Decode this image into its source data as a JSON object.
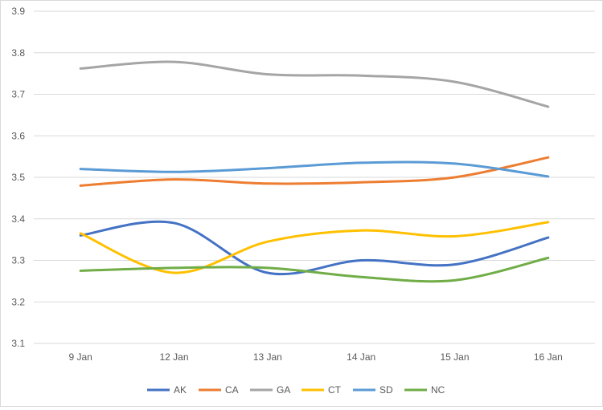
{
  "chart_data": {
    "type": "line",
    "smooth": true,
    "title": "",
    "xlabel": "",
    "ylabel": "",
    "categories": [
      "9 Jan",
      "12 Jan",
      "13 Jan",
      "14 Jan",
      "15 Jan",
      "16 Jan"
    ],
    "ylim": [
      3.1,
      3.9
    ],
    "yticks": [
      "3.1",
      "3.2",
      "3.3",
      "3.4",
      "3.5",
      "3.6",
      "3.7",
      "3.8",
      "3.9"
    ],
    "grid": true,
    "legend_position": "bottom",
    "series": [
      {
        "name": "AK",
        "color": "#4472c4",
        "values": [
          3.36,
          3.39,
          3.27,
          3.3,
          3.29,
          3.355
        ]
      },
      {
        "name": "CA",
        "color": "#ed7d31",
        "values": [
          3.48,
          3.495,
          3.485,
          3.488,
          3.5,
          3.548
        ]
      },
      {
        "name": "GA",
        "color": "#a5a5a5",
        "values": [
          3.762,
          3.778,
          3.748,
          3.745,
          3.73,
          3.67
        ]
      },
      {
        "name": "CT",
        "color": "#ffc000",
        "values": [
          3.365,
          3.27,
          3.345,
          3.372,
          3.358,
          3.392
        ]
      },
      {
        "name": "SD",
        "color": "#5b9bd5",
        "values": [
          3.52,
          3.513,
          3.522,
          3.535,
          3.533,
          3.502
        ]
      },
      {
        "name": "NC",
        "color": "#70ad47",
        "values": [
          3.275,
          3.282,
          3.282,
          3.26,
          3.252,
          3.306
        ]
      }
    ]
  }
}
